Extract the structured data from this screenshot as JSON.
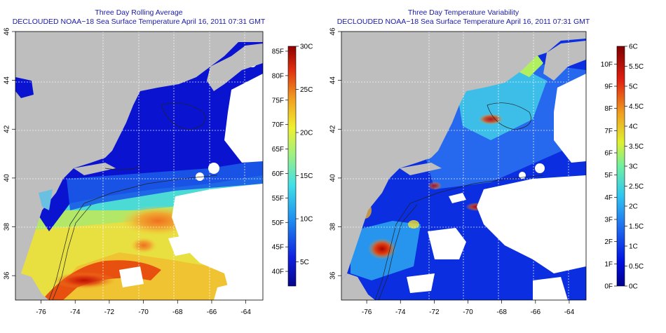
{
  "chart_data": [
    {
      "type": "heatmap",
      "title": "Three Day Rolling Average",
      "subtitle": "DECLOUDED NOAA−18 Sea Surface Temperature April 16, 2011 07:31 GMT",
      "x_ticks": [
        "-76",
        "-74",
        "-72",
        "-70",
        "-68",
        "-66",
        "-64"
      ],
      "y_ticks": [
        "36",
        "38",
        "40",
        "42",
        "44",
        "46"
      ],
      "xlim": [
        -77.5,
        -63
      ],
      "ylim": [
        35,
        46
      ],
      "grid": true,
      "colorbar": {
        "fahrenheit": [
          {
            "label": "40F",
            "value": 40
          },
          {
            "label": "45F",
            "value": 45
          },
          {
            "label": "50F",
            "value": 50
          },
          {
            "label": "55F",
            "value": 55
          },
          {
            "label": "60F",
            "value": 60
          },
          {
            "label": "65F",
            "value": 65
          },
          {
            "label": "70F",
            "value": 70
          },
          {
            "label": "75F",
            "value": 75
          },
          {
            "label": "80F",
            "value": 80
          },
          {
            "label": "85F",
            "value": 85
          }
        ],
        "celsius": [
          {
            "label": "5C",
            "value": 5
          },
          {
            "label": "10C",
            "value": 10
          },
          {
            "label": "15C",
            "value": 15
          },
          {
            "label": "20C",
            "value": 20
          },
          {
            "label": "25C",
            "value": 25
          },
          {
            "label": "30C",
            "value": 30
          }
        ],
        "range_c": [
          2.2,
          30
        ]
      }
    },
    {
      "type": "heatmap",
      "title": "Three Day Temperature Variability",
      "subtitle": "DECLOUDED NOAA−18 Sea Surface Temperature April 16, 2011 07:31 GMT",
      "x_ticks": [
        "-76",
        "-74",
        "-72",
        "-70",
        "-68",
        "-66",
        "-64"
      ],
      "y_ticks": [
        "36",
        "38",
        "40",
        "42",
        "44",
        "46"
      ],
      "xlim": [
        -77.5,
        -63
      ],
      "ylim": [
        35,
        46
      ],
      "grid": true,
      "colorbar": {
        "fahrenheit": [
          {
            "label": "0F",
            "value": 0
          },
          {
            "label": "1F",
            "value": 1
          },
          {
            "label": "2F",
            "value": 2
          },
          {
            "label": "3F",
            "value": 3
          },
          {
            "label": "4F",
            "value": 4
          },
          {
            "label": "5F",
            "value": 5
          },
          {
            "label": "6F",
            "value": 6
          },
          {
            "label": "7F",
            "value": 7
          },
          {
            "label": "8F",
            "value": 8
          },
          {
            "label": "9F",
            "value": 9
          },
          {
            "label": "10F",
            "value": 10
          }
        ],
        "celsius": [
          {
            "label": "0C",
            "value": 0
          },
          {
            "label": "0.5C",
            "value": 0.5
          },
          {
            "label": "1C",
            "value": 1
          },
          {
            "label": "1.5C",
            "value": 1.5
          },
          {
            "label": "2C",
            "value": 2
          },
          {
            "label": "2.5C",
            "value": 2.5
          },
          {
            "label": "3C",
            "value": 3
          },
          {
            "label": "3.5C",
            "value": 3.5
          },
          {
            "label": "4C",
            "value": 4
          },
          {
            "label": "4.5C",
            "value": 4.5
          },
          {
            "label": "5C",
            "value": 5
          },
          {
            "label": "5.5C",
            "value": 5.5
          },
          {
            "label": "6C",
            "value": 6
          }
        ],
        "range_c": [
          0,
          6
        ]
      }
    }
  ],
  "colors": {
    "title": "#1a1aa6",
    "land": "#bebebe",
    "cloud_mask": "#ffffff",
    "deep_blue": "#0a10c8",
    "cyan": "#33ccee",
    "yellow": "#e8e030",
    "orange": "#f08020",
    "dark_red": "#8a0000"
  }
}
